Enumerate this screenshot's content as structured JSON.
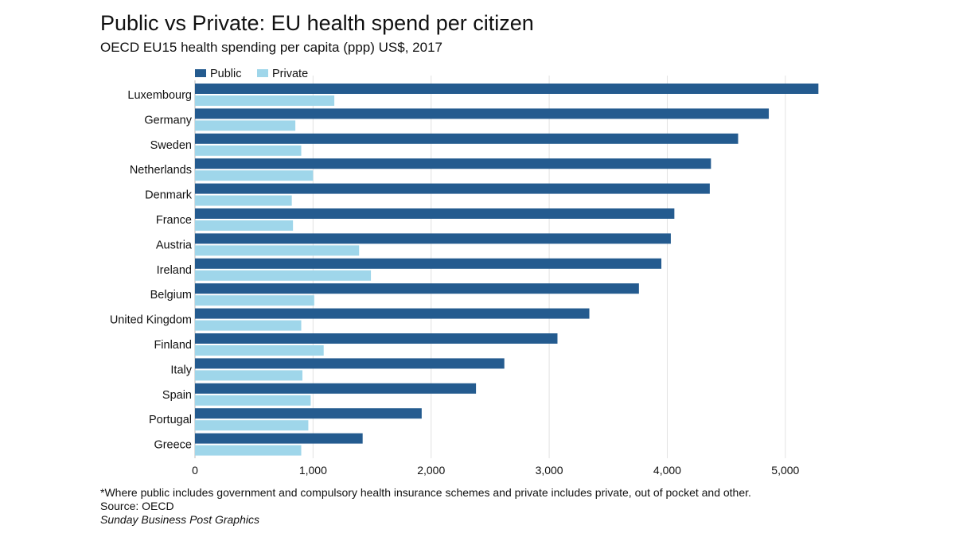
{
  "title": "Public vs Private: EU health spend per citizen",
  "subtitle": "OECD EU15 health spending per capita (ppp) US$, 2017",
  "footnote": "*Where public includes government and compulsory health insurance schemes and private includes private, out of pocket and other.",
  "source": "Source: OECD",
  "credit": "Sunday Business Post Graphics",
  "colors": {
    "public": "#245b8f",
    "private": "#9fd6ea",
    "grid": "#e2e2e2"
  },
  "chart_data": {
    "type": "bar",
    "orientation": "horizontal",
    "categories": [
      "Luxembourg",
      "Germany",
      "Sweden",
      "Netherlands",
      "Denmark",
      "France",
      "Austria",
      "Ireland",
      "Belgium",
      "United Kingdom",
      "Finland",
      "Italy",
      "Spain",
      "Portugal",
      "Greece"
    ],
    "series": [
      {
        "name": "Public",
        "values": [
          5280,
          4860,
          4600,
          4370,
          4360,
          4060,
          4030,
          3950,
          3760,
          3340,
          3070,
          2620,
          2380,
          1920,
          1420
        ]
      },
      {
        "name": "Private",
        "values": [
          1180,
          850,
          900,
          1000,
          820,
          830,
          1390,
          1490,
          1010,
          900,
          1090,
          910,
          980,
          960,
          900
        ]
      }
    ],
    "xlim": [
      0,
      5500
    ],
    "xticks": [
      0,
      1000,
      2000,
      3000,
      4000,
      5000
    ],
    "xtick_labels": [
      "0",
      "1,000",
      "2,000",
      "3,000",
      "4,000",
      "5,000"
    ],
    "grid": "vertical",
    "legend": "top-left"
  }
}
